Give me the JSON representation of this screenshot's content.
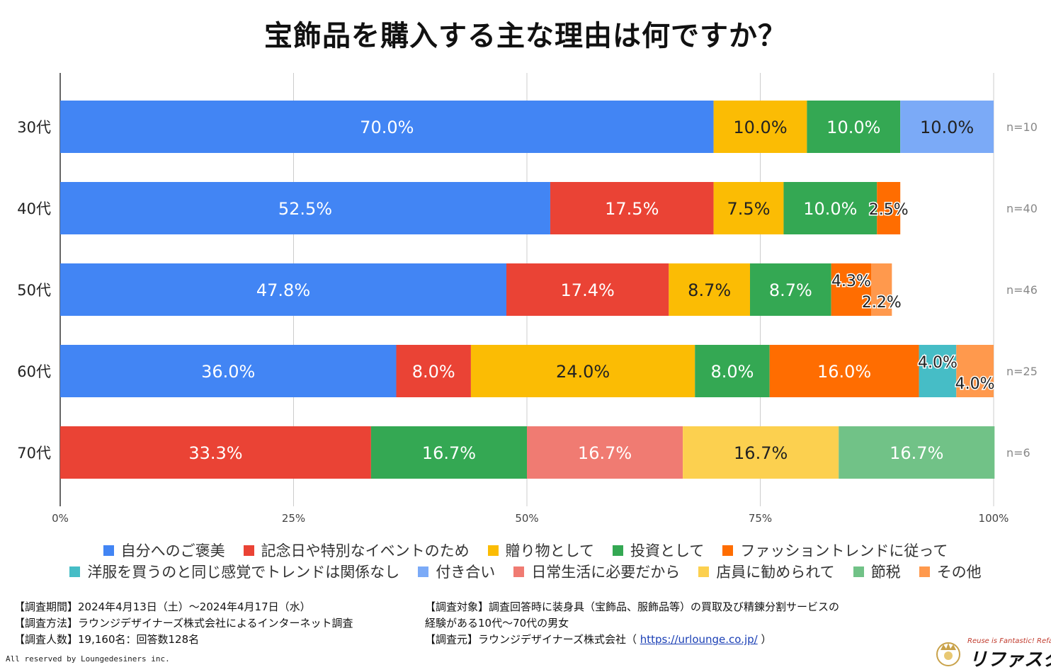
{
  "title": "宝飾品を購入する主な理由は何ですか？",
  "chart_data": {
    "type": "bar",
    "orientation": "horizontal-stacked-100",
    "categories": [
      "30代",
      "40代",
      "50代",
      "60代",
      "70代"
    ],
    "sample_sizes": [
      "n=10",
      "n=40",
      "n=46",
      "n=25",
      "n=6"
    ],
    "x_ticks": [
      "0%",
      "25%",
      "50%",
      "75%",
      "100%"
    ],
    "xlim": [
      0,
      100
    ],
    "grid": true,
    "legend_position": "bottom",
    "series": [
      {
        "name": "自分へのご褒美",
        "color": "#4285f4",
        "values": [
          70.0,
          52.5,
          47.8,
          36.0,
          0
        ],
        "labels": [
          "70.0%",
          "52.5%",
          "47.8%",
          "36.0%",
          ""
        ]
      },
      {
        "name": "記念日や特別なイベントのため",
        "color": "#ea4335",
        "values": [
          0,
          17.5,
          17.4,
          8.0,
          33.3
        ],
        "labels": [
          "",
          "17.5%",
          "17.4%",
          "8.0%",
          "33.3%"
        ]
      },
      {
        "name": "贈り物として",
        "color": "#fbbc04",
        "values": [
          10.0,
          7.5,
          8.7,
          24.0,
          0
        ],
        "labels": [
          "10.0%",
          "7.5%",
          "8.7%",
          "24.0%",
          ""
        ]
      },
      {
        "name": "投資として",
        "color": "#34a853",
        "values": [
          10.0,
          10.0,
          8.7,
          8.0,
          16.7
        ],
        "labels": [
          "10.0%",
          "10.0%",
          "8.7%",
          "8.0%",
          "16.7%"
        ]
      },
      {
        "name": "ファッショントレンドに従って",
        "color": "#ff6d01",
        "values": [
          0,
          2.5,
          4.3,
          16.0,
          0
        ],
        "labels": [
          "",
          "2.5%",
          "4.3%",
          "16.0%",
          ""
        ]
      },
      {
        "name": "洋服を買うのと同じ感覚でトレンドは関係なし",
        "color": "#46bdc6",
        "values": [
          0,
          0,
          0,
          4.0,
          0
        ],
        "labels": [
          "",
          "",
          "",
          "4.0%",
          ""
        ]
      },
      {
        "name": "付き合い",
        "color": "#7baaf7",
        "values": [
          10.0,
          0,
          0,
          0,
          0
        ],
        "labels": [
          "10.0%",
          "",
          "",
          "",
          ""
        ]
      },
      {
        "name": "日常生活に必要だから",
        "color": "#f07b72",
        "values": [
          0,
          0,
          0,
          0,
          16.7
        ],
        "labels": [
          "",
          "",
          "",
          "",
          "16.7%"
        ]
      },
      {
        "name": "店員に勧められて",
        "color": "#fcd04f",
        "values": [
          0,
          0,
          0,
          0,
          16.7
        ],
        "labels": [
          "",
          "",
          "",
          "",
          "16.7%"
        ]
      },
      {
        "name": "節税",
        "color": "#71c287",
        "values": [
          0,
          0,
          0,
          0,
          16.7
        ],
        "labels": [
          "",
          "",
          "",
          "",
          "16.7%"
        ]
      },
      {
        "name": "その他",
        "color": "#ff994d",
        "values": [
          0,
          0,
          2.2,
          4.0,
          0
        ],
        "labels": [
          "",
          "",
          "2.2%",
          "4.0%",
          ""
        ]
      }
    ]
  },
  "footer": {
    "left": [
      "【調査期間】2024年4月13日（土）～2024年4月17日（水）",
      "【調査方法】ラウンジデザイナーズ株式会社によるインターネット調査",
      "【調査人数】19,160名：回答数128名"
    ],
    "right_1": "【調査対象】調査回答時に装身具（宝飾品、服飾品等）の買取及び精錬分割サービスの",
    "right_2": "経験がある10代～70代の男女",
    "right_3_prefix": "【調査元】ラウンジデザイナーズ株式会社（ ",
    "right_3_link": "https://urlounge.co.jp/",
    "right_3_suffix": " ）"
  },
  "copyright": "All reserved by Loungedesiners inc.",
  "logo": {
    "tagline": "Reuse is Fantastic! Refasta",
    "name": "リファスタ"
  }
}
